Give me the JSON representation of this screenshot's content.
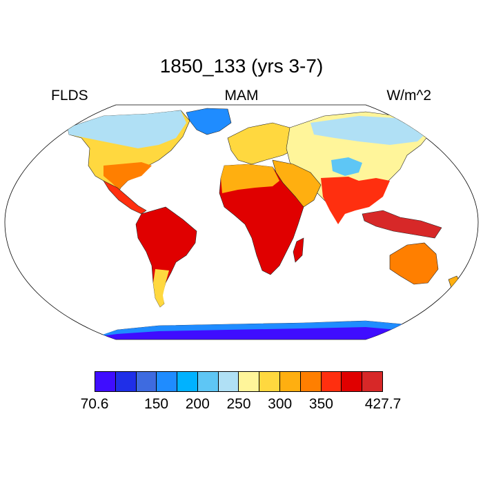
{
  "title": "1850_133 (yrs 3-7)",
  "variable": "FLDS",
  "season": "MAM",
  "units": "W/m^2",
  "colorbar": {
    "colors": [
      "#3f0dff",
      "#1f2fe8",
      "#3e6be0",
      "#1f8cff",
      "#00b2ff",
      "#5ec6f5",
      "#b0e0f5",
      "#fff59a",
      "#ffd83f",
      "#ffaf10",
      "#ff7f00",
      "#ff2f0f",
      "#e00000",
      "#d72828"
    ],
    "labels": [
      "70.6",
      "150",
      "200",
      "250",
      "300",
      "350",
      "427.7"
    ]
  }
}
